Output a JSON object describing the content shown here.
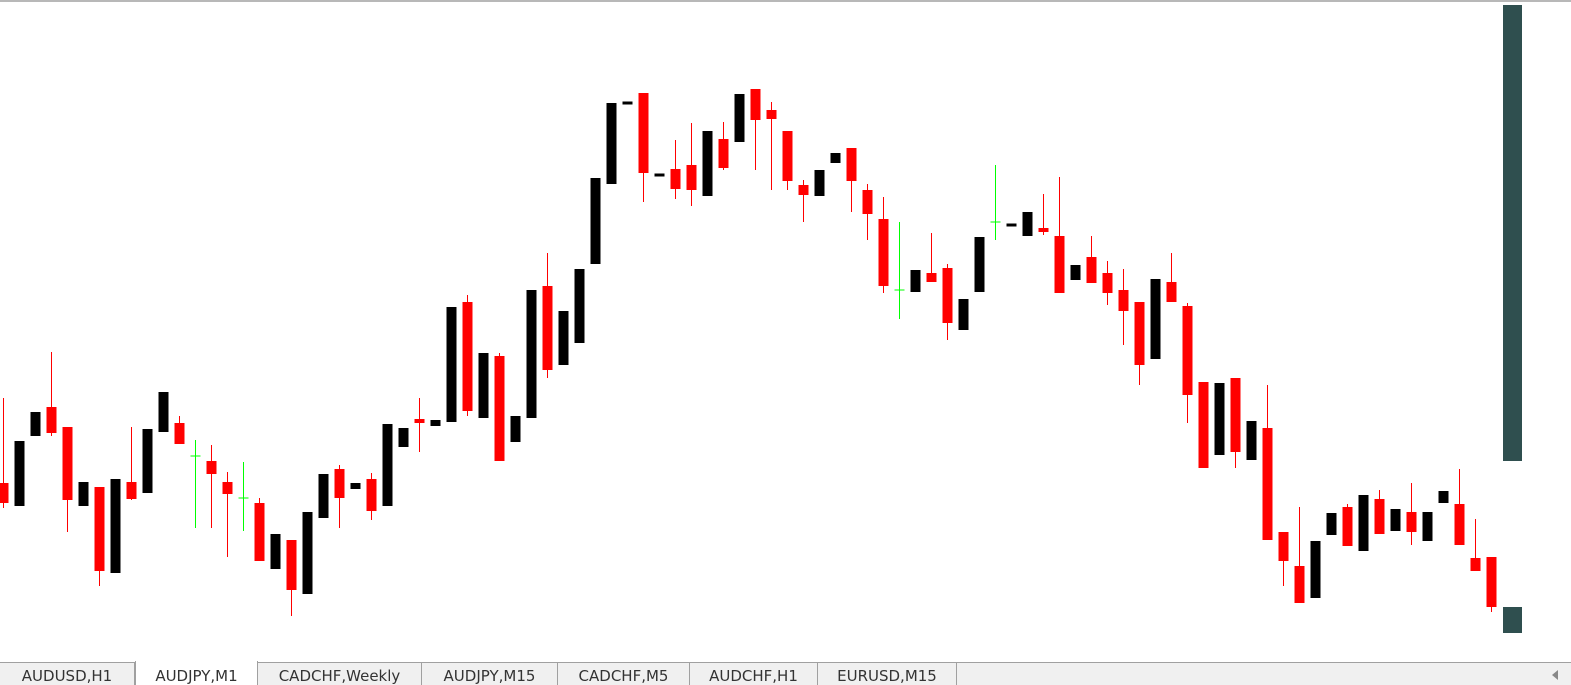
{
  "chart_data": {
    "type": "candlestick",
    "ylim": [
      0,
      660
    ],
    "up_color": "#000000",
    "down_color": "#ff0000",
    "doji_color": "#00ff00",
    "open": [
      177,
      154,
      224,
      253,
      233,
      154,
      173,
      87,
      178,
      167,
      228,
      237,
      204,
      199,
      178,
      162,
      157,
      91,
      120,
      66,
      142,
      191,
      171,
      181,
      154,
      213,
      241,
      234,
      238,
      358,
      242,
      304,
      218,
      242,
      374,
      295,
      317,
      396,
      476,
      557,
      567,
      485,
      491,
      495,
      464,
      521,
      518,
      571,
      550,
      529,
      475,
      464,
      497,
      512,
      470,
      441,
      370,
      368,
      387,
      392,
      330,
      368,
      438,
      435,
      424,
      432,
      424,
      380,
      403,
      387,
      370,
      358,
      301,
      378,
      354,
      278,
      205,
      282,
      200,
      232,
      128,
      94,
      62,
      125,
      153,
      109,
      161,
      129,
      148,
      119,
      157,
      156,
      102,
      103
    ],
    "high": [
      262,
      219,
      248,
      308,
      233,
      178,
      173,
      181,
      233,
      231,
      268,
      244,
      220,
      215,
      188,
      198,
      162,
      126,
      120,
      148,
      186,
      195,
      177,
      187,
      236,
      232,
      262,
      240,
      353,
      365,
      307,
      307,
      244,
      370,
      407,
      349,
      391,
      482,
      557,
      557,
      567,
      485,
      520,
      537,
      529,
      538,
      566,
      571,
      558,
      529,
      480,
      490,
      507,
      512,
      476,
      463,
      438,
      390,
      427,
      396,
      361,
      423,
      495,
      435,
      448,
      466,
      483,
      395,
      424,
      399,
      391,
      358,
      381,
      407,
      357,
      278,
      277,
      282,
      239,
      275,
      128,
      153,
      119,
      147,
      156,
      165,
      170,
      151,
      177,
      148,
      169,
      191,
      141,
      103
    ],
    "low": [
      152,
      154,
      224,
      224,
      128,
      154,
      74,
      87,
      160,
      167,
      228,
      216,
      132,
      132,
      103,
      129,
      99,
      91,
      44,
      66,
      142,
      132,
      171,
      140,
      154,
      213,
      208,
      234,
      238,
      244,
      242,
      199,
      218,
      242,
      282,
      295,
      317,
      396,
      476,
      557,
      458,
      485,
      461,
      454,
      464,
      490,
      518,
      490,
      470,
      470,
      438,
      464,
      497,
      448,
      420,
      367,
      341,
      368,
      378,
      320,
      330,
      368,
      420,
      435,
      424,
      425,
      367,
      380,
      377,
      355,
      315,
      275,
      301,
      358,
      237,
      192,
      205,
      192,
      200,
      120,
      74,
      57,
      62,
      125,
      114,
      109,
      126,
      129,
      115,
      119,
      157,
      115,
      89,
      48
    ],
    "close": [
      157,
      219,
      248,
      227,
      160,
      178,
      89,
      181,
      161,
      231,
      268,
      216,
      204,
      186,
      166,
      162,
      99,
      126,
      70,
      148,
      186,
      162,
      177,
      149,
      236,
      232,
      237,
      240,
      353,
      249,
      307,
      199,
      244,
      370,
      290,
      349,
      391,
      482,
      557,
      557,
      487,
      485,
      471,
      470,
      529,
      492,
      566,
      540,
      541,
      479,
      465,
      490,
      507,
      479,
      446,
      374,
      370,
      390,
      378,
      337,
      361,
      423,
      438,
      435,
      448,
      428,
      367,
      395,
      377,
      367,
      349,
      295,
      381,
      358,
      265,
      192,
      277,
      208,
      239,
      120,
      99,
      57,
      119,
      147,
      114,
      165,
      126,
      151,
      128,
      148,
      169,
      115,
      89,
      53
    ]
  },
  "tabs": [
    "AUDUSD,H1",
    "AUDJPY,M1",
    "CADCHF,Weekly",
    "AUDJPY,M15",
    "CADCHF,M5",
    "AUDCHF,H1",
    "EURUSD,M15"
  ],
  "active_tab": 1
}
